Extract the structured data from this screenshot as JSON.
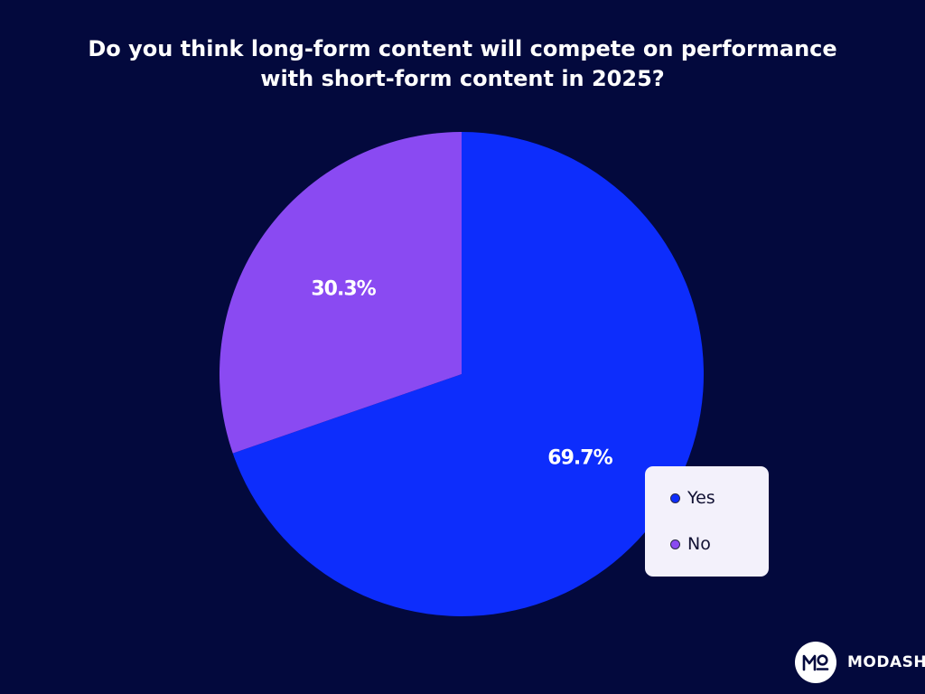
{
  "chart_data": {
    "type": "pie",
    "title": "Do you think long-form content will compete on performance with short-form content in 2025?",
    "title_lines": [
      "Do you think long-form content will compete on performance",
      "with short-form content in 2025?"
    ],
    "slices": [
      {
        "label": "Yes",
        "value": 69.7,
        "display": "69.7%",
        "color": "#0d2dfc"
      },
      {
        "label": "No",
        "value": 30.3,
        "display": "30.3%",
        "color": "#8a4af2"
      }
    ],
    "legend": {
      "placement": "bottom-right",
      "items": [
        "Yes",
        "No"
      ]
    }
  },
  "brand": {
    "name": "MODASH",
    "logo_icon": "modash-logo-icon"
  },
  "colors": {
    "background": "#03093d",
    "yes": "#0d2dfc",
    "no": "#8a4af2",
    "legend_bg": "#f3f1fb"
  }
}
